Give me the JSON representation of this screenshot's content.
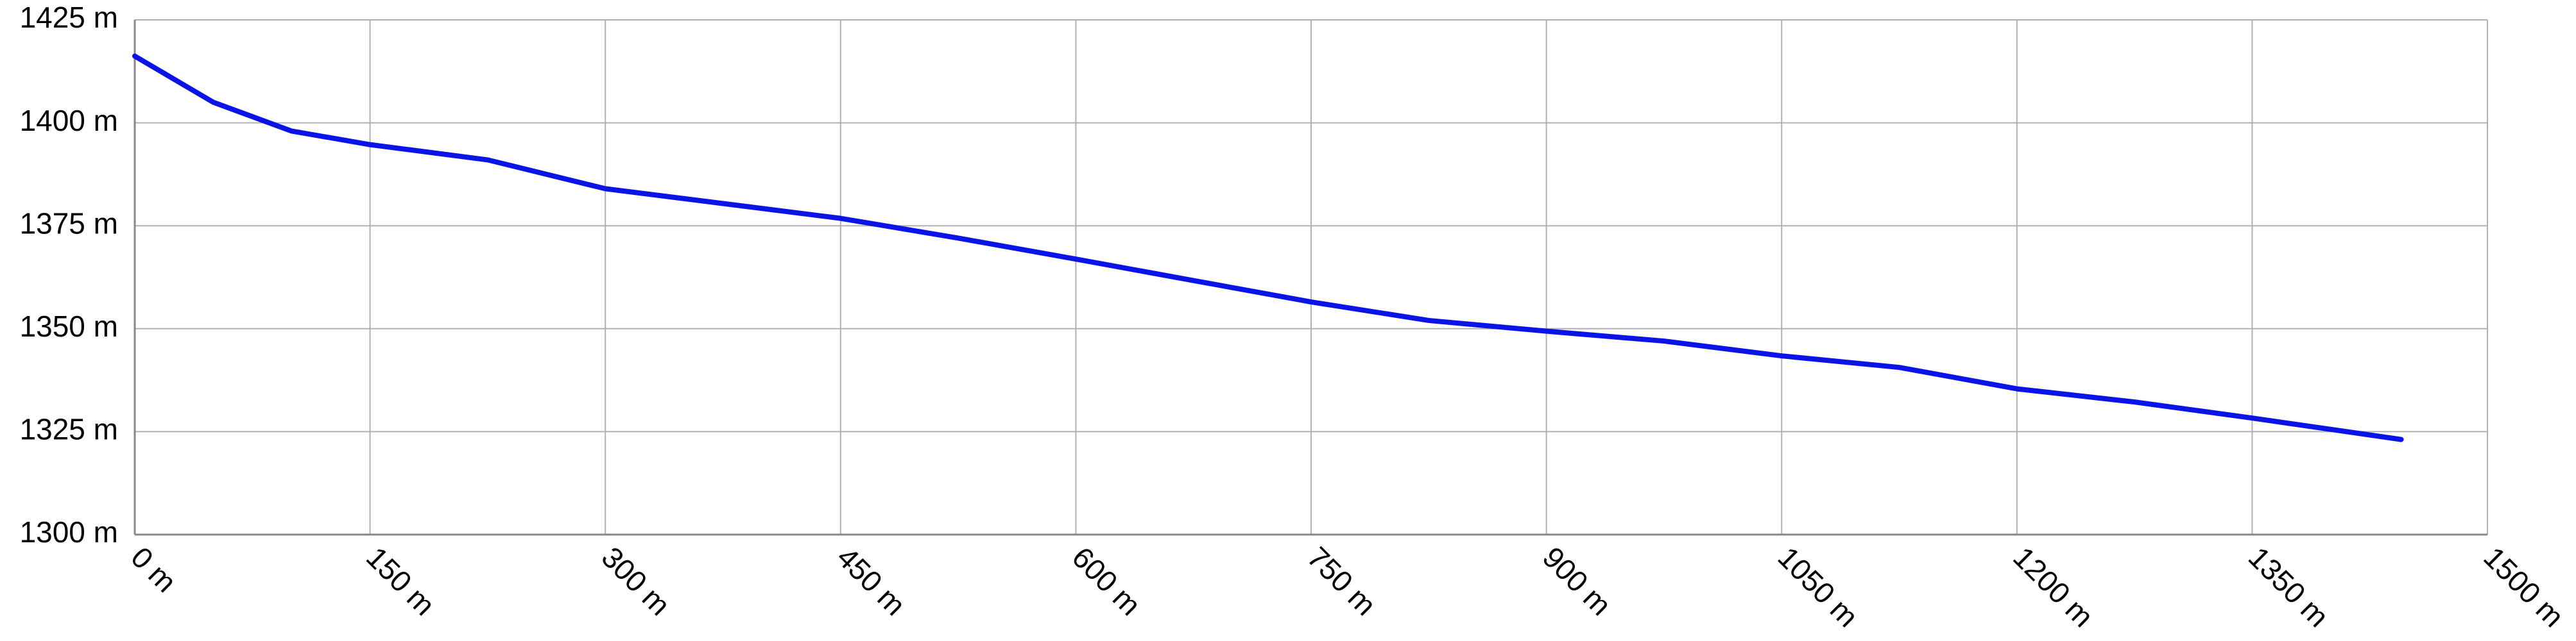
{
  "chart_data": {
    "type": "line",
    "x": [
      0,
      50,
      100,
      150,
      225,
      300,
      375,
      450,
      525,
      600,
      675,
      750,
      825,
      900,
      975,
      1050,
      1125,
      1200,
      1275,
      1350,
      1445
    ],
    "series": [
      {
        "color": "#0a14e6",
        "values": [
          1416.2,
          1405,
          1398,
          1394.7,
          1391,
          1384,
          1380.4,
          1376.8,
          1372,
          1366.9,
          1361.7,
          1356.5,
          1352,
          1349.4,
          1347,
          1343.4,
          1340.6,
          1335.4,
          1332.2,
          1328.3,
          1323.1
        ]
      }
    ],
    "xlim": [
      0,
      1500
    ],
    "xticks": [
      {
        "value": 0,
        "label": "0 m"
      },
      {
        "value": 150,
        "label": "150 m"
      },
      {
        "value": 300,
        "label": "300 m"
      },
      {
        "value": 450,
        "label": "450 m"
      },
      {
        "value": 600,
        "label": "600 m"
      },
      {
        "value": 750,
        "label": "750 m"
      },
      {
        "value": 900,
        "label": "900 m"
      },
      {
        "value": 1050,
        "label": "1050 m"
      },
      {
        "value": 1200,
        "label": "1200 m"
      },
      {
        "value": 1350,
        "label": "1350 m"
      },
      {
        "value": 1500,
        "label": "1500 m"
      }
    ],
    "ylim": [
      1300,
      1425
    ],
    "yticks": [
      {
        "value": 1300,
        "label": "1300 m"
      },
      {
        "value": 1325,
        "label": "1325 m"
      },
      {
        "value": 1350,
        "label": "1350 m"
      },
      {
        "value": 1375,
        "label": "1375 m"
      },
      {
        "value": 1400,
        "label": "1400 m"
      },
      {
        "value": 1425,
        "label": "1425 m"
      }
    ],
    "grid": true
  }
}
